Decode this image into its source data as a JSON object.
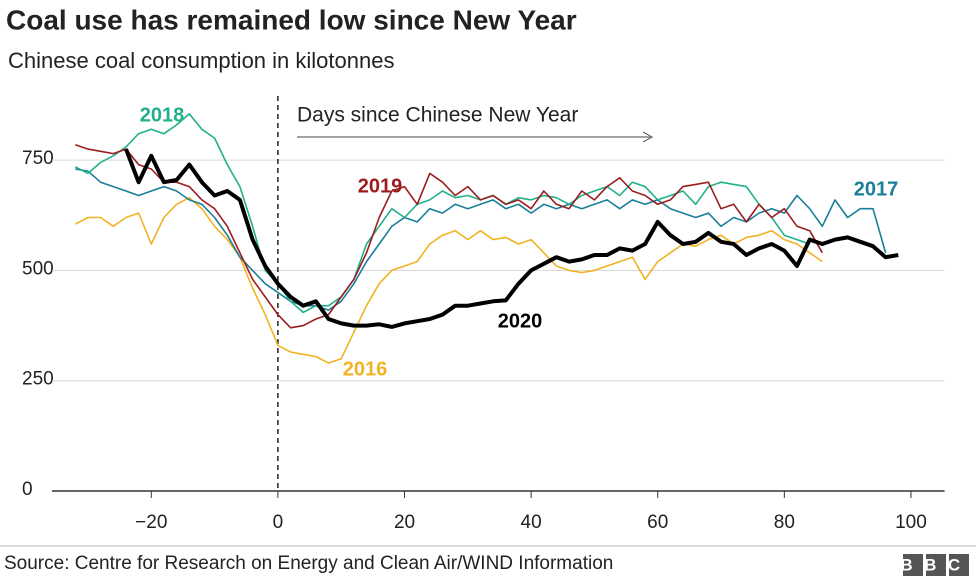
{
  "chart_data": {
    "type": "line",
    "title": "Coal use has remained low since New Year",
    "subtitle": "Chinese coal consumption in kilotonnes",
    "annotation": "Days since Chinese New Year",
    "source": "Source: Centre for Research on Energy and Clean Air/WIND Information",
    "logo": "BBC",
    "x": [
      -32,
      -30,
      -28,
      -26,
      -24,
      -22,
      -20,
      -18,
      -16,
      -14,
      -12,
      -10,
      -8,
      -6,
      -4,
      -2,
      0,
      2,
      4,
      6,
      8,
      10,
      12,
      14,
      16,
      18,
      20,
      22,
      24,
      26,
      28,
      30,
      32,
      34,
      36,
      38,
      40,
      42,
      44,
      46,
      48,
      50,
      52,
      54,
      56,
      58,
      60,
      62,
      64,
      66,
      68,
      70,
      72,
      74,
      76,
      78,
      80,
      82,
      84,
      86,
      88,
      90,
      92,
      94,
      96,
      98
    ],
    "xlim": [
      -36,
      105
    ],
    "xticks": [
      {
        "value": -20,
        "label": "−20"
      },
      0,
      20,
      40,
      60,
      80,
      100
    ],
    "ylim": [
      0,
      900
    ],
    "yticks": [
      0,
      250,
      500,
      750
    ],
    "grid": true,
    "series": [
      {
        "name": "2016",
        "color": "#f0b323",
        "values": [
          605,
          620,
          620,
          600,
          620,
          630,
          560,
          620,
          650,
          665,
          640,
          600,
          570,
          530,
          460,
          400,
          330,
          315,
          310,
          305,
          290,
          300,
          360,
          420,
          470,
          500,
          510,
          520,
          560,
          580,
          590,
          570,
          590,
          570,
          575,
          560,
          570,
          540,
          510,
          500,
          495,
          500,
          510,
          520,
          530,
          480,
          520,
          540,
          560,
          555,
          570,
          580,
          560,
          575,
          580,
          590,
          570,
          560,
          540,
          520,
          null,
          null,
          null,
          null,
          null,
          null
        ]
      },
      {
        "name": "2017",
        "color": "#1b7e9a",
        "values": [
          730,
          725,
          700,
          690,
          680,
          670,
          680,
          690,
          680,
          660,
          650,
          620,
          580,
          530,
          500,
          470,
          450,
          430,
          420,
          420,
          410,
          430,
          470,
          520,
          560,
          600,
          620,
          610,
          640,
          630,
          650,
          640,
          650,
          660,
          640,
          650,
          630,
          650,
          640,
          650,
          640,
          650,
          660,
          640,
          660,
          650,
          660,
          640,
          630,
          620,
          630,
          600,
          620,
          610,
          630,
          640,
          630,
          670,
          640,
          600,
          660,
          620,
          640,
          640,
          540,
          null
        ]
      },
      {
        "name": "2018",
        "color": "#22b08c",
        "values": [
          735,
          720,
          745,
          760,
          780,
          810,
          820,
          810,
          830,
          855,
          820,
          800,
          740,
          690,
          600,
          500,
          470,
          430,
          405,
          420,
          420,
          440,
          480,
          560,
          600,
          640,
          620,
          650,
          660,
          680,
          665,
          670,
          660,
          670,
          650,
          665,
          660,
          670,
          665,
          650,
          670,
          680,
          690,
          670,
          700,
          690,
          660,
          670,
          680,
          650,
          690,
          700,
          695,
          690,
          650,
          620,
          580,
          570,
          560,
          null,
          null,
          null,
          null,
          null,
          null,
          null
        ]
      },
      {
        "name": "2019",
        "color": "#9b1d20",
        "values": [
          785,
          775,
          770,
          765,
          775,
          740,
          730,
          700,
          700,
          690,
          660,
          640,
          600,
          540,
          480,
          440,
          400,
          370,
          375,
          390,
          400,
          440,
          480,
          540,
          620,
          680,
          690,
          650,
          720,
          700,
          670,
          690,
          660,
          670,
          650,
          660,
          640,
          680,
          650,
          640,
          680,
          660,
          690,
          710,
          680,
          670,
          650,
          660,
          690,
          695,
          700,
          640,
          650,
          610,
          650,
          620,
          640,
          600,
          590,
          540,
          null,
          null,
          null,
          null,
          null,
          null
        ]
      },
      {
        "name": "2020",
        "color": "#000000",
        "values": [
          null,
          null,
          null,
          null,
          775,
          700,
          760,
          700,
          705,
          740,
          700,
          670,
          680,
          660,
          570,
          510,
          470,
          440,
          420,
          430,
          390,
          380,
          375,
          375,
          378,
          372,
          380,
          385,
          390,
          400,
          420,
          420,
          425,
          430,
          432,
          470,
          500,
          515,
          530,
          520,
          525,
          535,
          535,
          550,
          545,
          560,
          610,
          580,
          560,
          565,
          585,
          565,
          560,
          535,
          550,
          560,
          545,
          510,
          570,
          560,
          570,
          575,
          565,
          555,
          530,
          535
        ]
      }
    ]
  }
}
